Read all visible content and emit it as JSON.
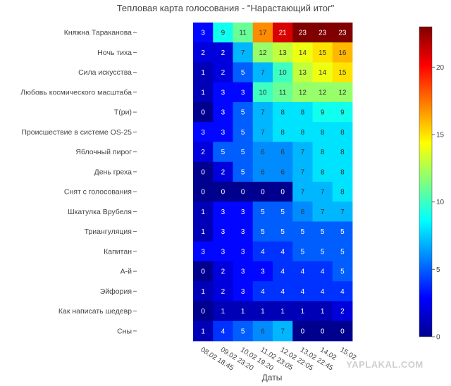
{
  "chart_data": {
    "type": "heatmap",
    "title": "Тепловая карта голосования - \"Нарастающий итог\"",
    "xlabel": "Даты",
    "ylabel": "",
    "rows": [
      "Княжна Тараканова",
      "Ночь тиха",
      "Сила искусства",
      "Любовь космического масштаба",
      "Т(ри)",
      "Происшествие в системе OS-25",
      "Яблочный пирог",
      "День греха",
      "Снят с голосования",
      "Шкатулка Врубеля",
      "Триангуляция",
      "Капитан",
      "А-й",
      "Эйфория",
      "Как написать шедевр",
      "Сны"
    ],
    "columns": [
      "08.02 18:45",
      "09.02 23:20",
      "10.02 19:20",
      "11.02 23:05",
      "12.02 22:05",
      "13.02 22:45",
      "14.02",
      "15.02"
    ],
    "values": [
      [
        3,
        9,
        11,
        17,
        21,
        23,
        23,
        23
      ],
      [
        2,
        2,
        7,
        12,
        13,
        14,
        15,
        16
      ],
      [
        1,
        2,
        5,
        7,
        10,
        13,
        14,
        15
      ],
      [
        1,
        3,
        3,
        10,
        11,
        12,
        12,
        12
      ],
      [
        0,
        3,
        5,
        7,
        8,
        8,
        9,
        9
      ],
      [
        3,
        3,
        5,
        7,
        8,
        8,
        8,
        8
      ],
      [
        2,
        5,
        5,
        6,
        6,
        7,
        8,
        8
      ],
      [
        0,
        2,
        5,
        6,
        6,
        7,
        8,
        8
      ],
      [
        0,
        0,
        0,
        0,
        0,
        7,
        7,
        8
      ],
      [
        1,
        3,
        3,
        5,
        5,
        6,
        7,
        7
      ],
      [
        1,
        3,
        3,
        5,
        5,
        5,
        5,
        5
      ],
      [
        3,
        3,
        3,
        4,
        4,
        5,
        5,
        5
      ],
      [
        0,
        2,
        3,
        3,
        4,
        4,
        4,
        5
      ],
      [
        1,
        2,
        3,
        4,
        4,
        4,
        4,
        4
      ],
      [
        0,
        1,
        1,
        1,
        1,
        1,
        1,
        2
      ],
      [
        1,
        4,
        5,
        6,
        7,
        0,
        0,
        0
      ]
    ],
    "zlim": [
      0,
      23
    ],
    "colorbar_ticks": [
      0,
      5,
      10,
      15,
      20
    ],
    "colorscale": "jet",
    "colorbar_placement": "right"
  },
  "watermark": "YAPLAKAL.COM"
}
